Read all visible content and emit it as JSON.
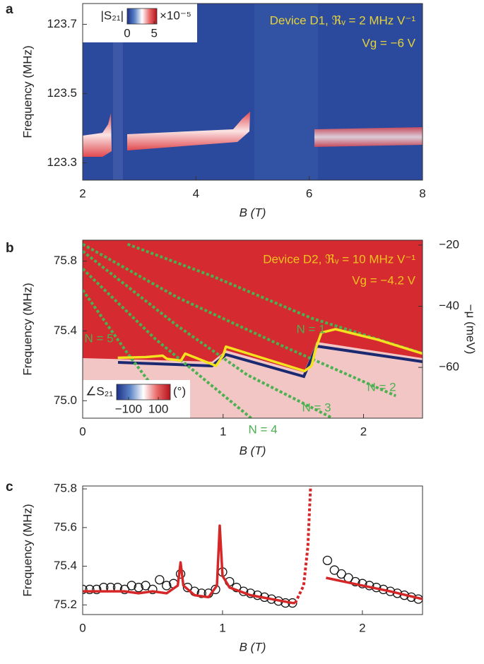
{
  "chart_data": [
    {
      "type": "heatmap",
      "panel": "a",
      "xlabel": "B (T)",
      "ylabel": "Frequency (MHz)",
      "xlim": [
        2,
        8
      ],
      "ylim": [
        123.25,
        123.76
      ],
      "xticks": [
        2,
        4,
        6,
        8
      ],
      "yticks": [
        123.3,
        123.5,
        123.7
      ],
      "colorbar": {
        "label": "|S₂₁|",
        "unit": "×10⁻⁵",
        "clim": [
          0,
          5.5
        ],
        "ticks": [
          0,
          5
        ]
      },
      "annotations": [
        {
          "text": "Device D1, ℜᵥ = 2 MHz V⁻¹",
          "color": "#e6d33a"
        },
        {
          "text": "Vg = −6 V",
          "color": "#e6d33a"
        }
      ]
    },
    {
      "type": "heatmap",
      "panel": "b",
      "xlabel": "B (T)",
      "ylabel": "Frequency (MHz)",
      "y2label": "−μ (meV)",
      "xlim": [
        0,
        2.42
      ],
      "ylim": [
        74.9,
        75.92
      ],
      "xticks": [
        0,
        1,
        2
      ],
      "yticks": [
        {
          "value": 75,
          "label": "75.0"
        },
        75.4,
        75.8
      ],
      "y2lim": [
        -76.6,
        -18.4
      ],
      "y2ticks": [
        {
          "value": -60,
          "label": "−60"
        },
        {
          "value": -40,
          "label": "−40"
        },
        {
          "value": -20,
          "label": "−20"
        }
      ],
      "colorbar": {
        "label": "∠S₂₁",
        "unit": "(°)",
        "clim": [
          -180,
          180
        ],
        "ticks": [
          {
            "value": -100,
            "label": "−100"
          },
          100
        ]
      },
      "annotations": [
        {
          "text": "Device D2, ℜᵥ = 10 MHz V⁻¹",
          "color": "#f2c21e"
        },
        {
          "text": "Vg = −4.2 V",
          "color": "#f2c21e"
        }
      ],
      "series": [
        {
          "name": "N = 1",
          "color": "#4bb04f",
          "dash": true,
          "x": [
            0.32,
            0.92,
            1.63,
            2.42
          ],
          "values": [
            75.897,
            75.715,
            75.473,
            75.271
          ]
        },
        {
          "name": "N = 2",
          "color": "#4bb04f",
          "dash": true,
          "x": [
            0,
            0.67,
            1.43,
            2.23
          ],
          "values": [
            75.897,
            75.594,
            75.311,
            75.028
          ]
        },
        {
          "name": "N = 3",
          "color": "#4bb04f",
          "dash": true,
          "x": [
            0,
            0.67,
            1.17,
            1.78
          ],
          "values": [
            75.857,
            75.432,
            75.149,
            74.9
          ]
        },
        {
          "name": "N = 4",
          "color": "#4bb04f",
          "dash": true,
          "x": [
            0,
            0.52,
            1.2
          ],
          "values": [
            75.756,
            75.352,
            74.9
          ]
        },
        {
          "name": "N = 5",
          "color": "#4bb04f",
          "dash": true,
          "x": [
            0,
            0.32,
            0.67
          ],
          "values": [
            75.634,
            75.271,
            74.9
          ]
        },
        {
          "color": "#f5e21e",
          "dash": false,
          "x": [
            0.25,
            0.45,
            0.57,
            0.6,
            0.7,
            0.73,
            0.95,
            1.0,
            1.02,
            1.3,
            1.58,
            1.63,
            1.66,
            1.7,
            1.8,
            2.1,
            2.42
          ],
          "values": [
            75.246,
            75.25,
            75.258,
            75.24,
            75.23,
            75.27,
            75.2,
            75.26,
            75.31,
            75.24,
            75.17,
            75.2,
            75.3,
            75.39,
            75.41,
            75.35,
            75.27
          ]
        }
      ]
    },
    {
      "type": "scatter",
      "panel": "c",
      "xlabel": "B (T)",
      "ylabel": "Frequency (MHz)",
      "xlim": [
        0,
        2.43
      ],
      "ylim": [
        75.15,
        75.815
      ],
      "xticks": [
        0,
        1,
        2
      ],
      "yticks": [
        75.2,
        75.4,
        75.6,
        75.8
      ],
      "series": [
        {
          "style": "markers",
          "color": "#111111",
          "x": [
            0,
            0.05,
            0.1,
            0.15,
            0.2,
            0.25,
            0.3,
            0.35,
            0.4,
            0.45,
            0.5,
            0.55,
            0.6,
            0.65,
            0.7,
            0.75,
            0.8,
            0.85,
            0.9,
            0.95,
            1.0,
            1.05,
            1.1,
            1.15,
            1.2,
            1.25,
            1.3,
            1.35,
            1.4,
            1.45,
            1.5,
            1.75,
            1.8,
            1.85,
            1.9,
            1.95,
            2.0,
            2.05,
            2.1,
            2.15,
            2.2,
            2.25,
            2.3,
            2.35,
            2.4
          ],
          "values": [
            75.28,
            75.28,
            75.28,
            75.29,
            75.29,
            75.29,
            75.28,
            75.3,
            75.29,
            75.3,
            75.28,
            75.33,
            75.3,
            75.31,
            75.36,
            75.29,
            75.27,
            75.26,
            75.26,
            75.28,
            75.37,
            75.32,
            75.29,
            75.27,
            75.26,
            75.25,
            75.24,
            75.23,
            75.22,
            75.21,
            75.21,
            75.43,
            75.38,
            75.36,
            75.34,
            75.32,
            75.31,
            75.3,
            75.29,
            75.28,
            75.27,
            75.26,
            75.25,
            75.24,
            75.23
          ]
        },
        {
          "style": "line",
          "color": "#d62728",
          "x": [
            0,
            0.3,
            0.4,
            0.5,
            0.6,
            0.68,
            0.7,
            0.72,
            0.8,
            0.9,
            0.96,
            0.98,
            1.0,
            1.05,
            1.2,
            1.5,
            1.52
          ],
          "values": [
            75.27,
            75.27,
            75.26,
            75.27,
            75.26,
            75.3,
            75.42,
            75.3,
            75.25,
            75.24,
            75.3,
            75.61,
            75.35,
            75.29,
            75.25,
            75.21,
            75.21
          ]
        },
        {
          "style": "dashed",
          "color": "#d62728",
          "x": [
            1.52,
            1.58,
            1.61,
            1.63
          ],
          "values": [
            75.21,
            75.3,
            75.5,
            75.82
          ]
        },
        {
          "style": "line",
          "color": "#d62728",
          "x": [
            1.74,
            2.0,
            2.2,
            2.43
          ],
          "values": [
            75.34,
            75.3,
            75.27,
            75.23
          ]
        }
      ]
    }
  ]
}
